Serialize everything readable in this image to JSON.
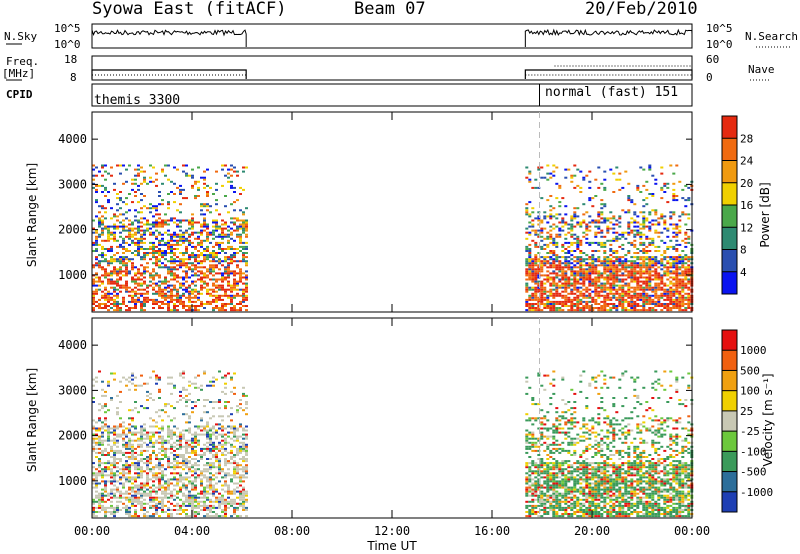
{
  "header": {
    "station": "Syowa East (fitACF)",
    "beam": "Beam 07",
    "date": "20/Feb/2010"
  },
  "left_labels": {
    "nsky": "N.Sky",
    "freq": "Freq.",
    "freq_unit": "[MHz]",
    "cpid": "CPID"
  },
  "right_labels": {
    "nsearch": "N.Search",
    "nave": "Nave"
  },
  "noise_axis": {
    "top": "10^5",
    "bottom": "10^0"
  },
  "freq_axis": {
    "top": "18",
    "bottom": "8"
  },
  "nave_axis": {
    "top": "60",
    "bottom": "0"
  },
  "cpid": {
    "first": "themis 3300",
    "second": "normal (fast) 151"
  },
  "colors": {
    "power_scale": [
      "#0a14f0",
      "#2a4fb0",
      "#2e8a72",
      "#4aa84a",
      "#f0d000",
      "#f09a10",
      "#f06a10",
      "#e52a10"
    ],
    "velocity_scale": [
      "#1e3fb4",
      "#2c6e9a",
      "#3a9a5a",
      "#6cc83c",
      "#c8c8b4",
      "#f0d000",
      "#f0a010",
      "#f06010",
      "#e51010"
    ]
  },
  "chart_data": [
    {
      "type": "heatmap",
      "panel": "power",
      "ylabel": "Slant Range [km]",
      "yticks": [
        "1000",
        "2000",
        "3000",
        "4000"
      ],
      "ylim": [
        180,
        4600
      ],
      "xlim": [
        "00:00",
        "24:00"
      ],
      "colorbar_label": "Power [dB]",
      "colorbar_ticks": [
        "4",
        "8",
        "12",
        "16",
        "20",
        "24",
        "28"
      ],
      "data_segments": [
        [
          "00:00",
          "06:10"
        ],
        [
          "17:20",
          "24:00"
        ]
      ]
    },
    {
      "type": "heatmap",
      "panel": "velocity",
      "ylabel": "Slant Range [km]",
      "yticks": [
        "1000",
        "2000",
        "3000",
        "4000"
      ],
      "ylim": [
        180,
        4600
      ],
      "xlim": [
        "00:00",
        "24:00"
      ],
      "colorbar_label": "Velocity [m s⁻¹]",
      "colorbar_ticks": [
        "1000",
        "500",
        "100",
        "25",
        "-25",
        "-100",
        "-500",
        "-1000"
      ],
      "data_segments": [
        [
          "00:00",
          "06:10"
        ],
        [
          "17:20",
          "24:00"
        ]
      ]
    }
  ],
  "x_axis": {
    "ticks": [
      "00:00",
      "04:00",
      "08:00",
      "12:00",
      "16:00",
      "20:00",
      "00:00"
    ],
    "label": "Time UT"
  }
}
